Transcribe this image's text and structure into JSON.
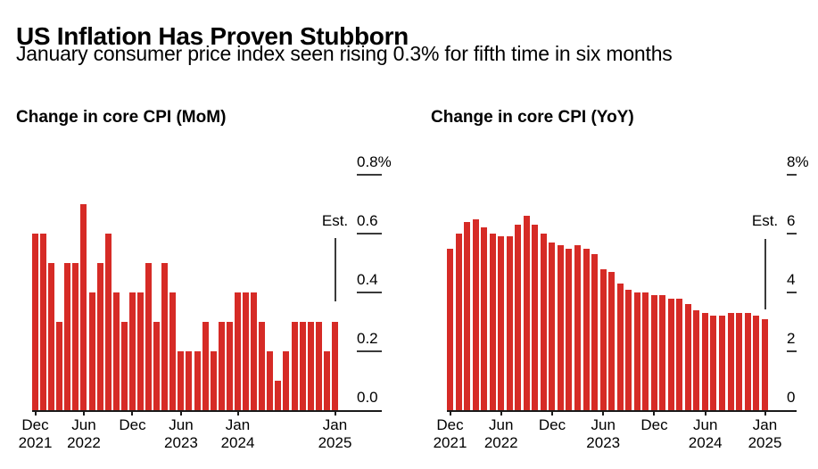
{
  "header": {
    "title": "US Inflation Has Proven Stubborn",
    "subtitle": "January consumer price index seen rising 0.3% for fifth time in six months"
  },
  "colors": {
    "bar_red": "#d62b26",
    "axis_line": "#1a1a1a",
    "tick_dash": "#3a3a3a",
    "text": "#000000",
    "background": "#ffffff"
  },
  "chart_data": [
    {
      "type": "bar",
      "title": "Change in core CPI (MoM)",
      "unit": "%",
      "est_label": "Est.",
      "estimate_index": 37,
      "ylim": [
        0,
        0.8
      ],
      "grid": "off",
      "legend": "none",
      "yticks": [
        {
          "value": 0.8,
          "label": "0.8%"
        },
        {
          "value": 0.6,
          "label": "0.6"
        },
        {
          "value": 0.4,
          "label": "0.4"
        },
        {
          "value": 0.2,
          "label": "0.2"
        },
        {
          "value": 0.0,
          "label": "0.0"
        }
      ],
      "xticks": [
        {
          "index": 0,
          "month": "Dec",
          "year": "2021"
        },
        {
          "index": 6,
          "month": "Jun",
          "year": "2022"
        },
        {
          "index": 12,
          "month": "Dec",
          "year": ""
        },
        {
          "index": 18,
          "month": "Jun",
          "year": "2023"
        },
        {
          "index": 25,
          "month": "Jan",
          "year": "2024"
        },
        {
          "index": 37,
          "month": "Jan",
          "year": "2025"
        }
      ],
      "categories": [
        "Dec 2021",
        "Jan 2022",
        "Feb 2022",
        "Mar 2022",
        "Apr 2022",
        "May 2022",
        "Jun 2022",
        "Jul 2022",
        "Aug 2022",
        "Sep 2022",
        "Oct 2022",
        "Nov 2022",
        "Dec 2022",
        "Jan 2023",
        "Feb 2023",
        "Mar 2023",
        "Apr 2023",
        "May 2023",
        "Jun 2023",
        "Jul 2023",
        "Aug 2023",
        "Sep 2023",
        "Oct 2023",
        "Nov 2023",
        "Dec 2023",
        "Jan 2024",
        "Feb 2024",
        "Mar 2024",
        "Apr 2024",
        "May 2024",
        "Jun 2024",
        "Jul 2024",
        "Aug 2024",
        "Sep 2024",
        "Oct 2024",
        "Nov 2024",
        "Dec 2024",
        "Jan 2025"
      ],
      "values": [
        0.6,
        0.6,
        0.5,
        0.3,
        0.5,
        0.5,
        0.7,
        0.4,
        0.5,
        0.6,
        0.4,
        0.3,
        0.4,
        0.4,
        0.5,
        0.3,
        0.5,
        0.4,
        0.2,
        0.2,
        0.2,
        0.3,
        0.2,
        0.3,
        0.3,
        0.4,
        0.4,
        0.4,
        0.3,
        0.2,
        0.1,
        0.2,
        0.3,
        0.3,
        0.3,
        0.3,
        0.2,
        0.3
      ]
    },
    {
      "type": "bar",
      "title": "Change in core CPI (YoY)",
      "unit": "%",
      "est_label": "Est.",
      "estimate_index": 37,
      "ylim": [
        0,
        8
      ],
      "grid": "off",
      "legend": "none",
      "yticks": [
        {
          "value": 8,
          "label": "8%"
        },
        {
          "value": 6,
          "label": "6"
        },
        {
          "value": 4,
          "label": "4"
        },
        {
          "value": 2,
          "label": "2"
        },
        {
          "value": 0,
          "label": "0"
        }
      ],
      "xticks": [
        {
          "index": 0,
          "month": "Dec",
          "year": "2021"
        },
        {
          "index": 6,
          "month": "Jun",
          "year": "2022"
        },
        {
          "index": 12,
          "month": "Dec",
          "year": ""
        },
        {
          "index": 18,
          "month": "Jun",
          "year": "2023"
        },
        {
          "index": 24,
          "month": "Dec",
          "year": ""
        },
        {
          "index": 30,
          "month": "Jun",
          "year": "2024"
        },
        {
          "index": 37,
          "month": "Jan",
          "year": "2025"
        }
      ],
      "categories": [
        "Dec 2021",
        "Jan 2022",
        "Feb 2022",
        "Mar 2022",
        "Apr 2022",
        "May 2022",
        "Jun 2022",
        "Jul 2022",
        "Aug 2022",
        "Sep 2022",
        "Oct 2022",
        "Nov 2022",
        "Dec 2022",
        "Jan 2023",
        "Feb 2023",
        "Mar 2023",
        "Apr 2023",
        "May 2023",
        "Jun 2023",
        "Jul 2023",
        "Aug 2023",
        "Sep 2023",
        "Oct 2023",
        "Nov 2023",
        "Dec 2023",
        "Jan 2024",
        "Feb 2024",
        "Mar 2024",
        "Apr 2024",
        "May 2024",
        "Jun 2024",
        "Jul 2024",
        "Aug 2024",
        "Sep 2024",
        "Oct 2024",
        "Nov 2024",
        "Dec 2024",
        "Jan 2025"
      ],
      "values": [
        5.5,
        6.0,
        6.4,
        6.5,
        6.2,
        6.0,
        5.9,
        5.9,
        6.3,
        6.6,
        6.3,
        6.0,
        5.7,
        5.6,
        5.5,
        5.6,
        5.5,
        5.3,
        4.8,
        4.7,
        4.3,
        4.1,
        4.0,
        4.0,
        3.9,
        3.9,
        3.8,
        3.8,
        3.6,
        3.4,
        3.3,
        3.2,
        3.2,
        3.3,
        3.3,
        3.3,
        3.2,
        3.1
      ]
    }
  ]
}
